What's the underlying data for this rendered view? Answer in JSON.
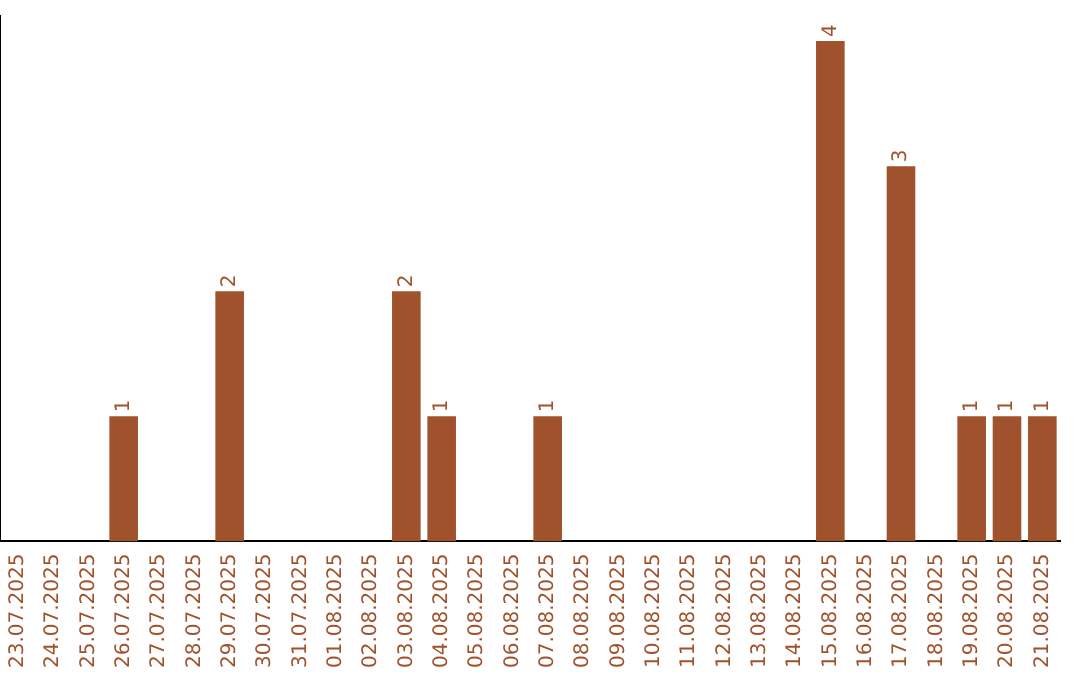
{
  "chart_data": {
    "type": "bar",
    "categories": [
      "23.07.2025",
      "24.07.2025",
      "25.07.2025",
      "26.07.2025",
      "27.07.2025",
      "28.07.2025",
      "29.07.2025",
      "30.07.2025",
      "31.07.2025",
      "01.08.2025",
      "02.08.2025",
      "03.08.2025",
      "04.08.2025",
      "05.08.2025",
      "06.08.2025",
      "07.08.2025",
      "08.08.2025",
      "09.08.2025",
      "10.08.2025",
      "11.08.2025",
      "12.08.2025",
      "13.08.2025",
      "14.08.2025",
      "15.08.2025",
      "16.08.2025",
      "17.08.2025",
      "18.08.2025",
      "19.08.2025",
      "20.08.2025",
      "21.08.2025"
    ],
    "values": [
      0,
      0,
      0,
      1,
      0,
      0,
      2,
      0,
      0,
      0,
      0,
      2,
      1,
      0,
      0,
      1,
      0,
      0,
      0,
      0,
      0,
      0,
      0,
      4,
      0,
      3,
      0,
      1,
      1,
      1
    ],
    "value_labels": [
      null,
      null,
      null,
      "1",
      null,
      null,
      "2",
      null,
      null,
      null,
      null,
      "2",
      "1",
      null,
      null,
      "1",
      null,
      null,
      null,
      null,
      null,
      null,
      null,
      "4",
      null,
      "3",
      null,
      "1",
      "1",
      "1"
    ],
    "color": "#a0522d",
    "ylim": [
      0,
      4.2
    ],
    "tick_labels": "x",
    "grid": false,
    "legend": false
  }
}
